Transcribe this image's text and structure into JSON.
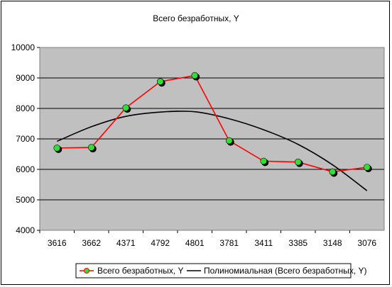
{
  "chart_data": {
    "type": "line",
    "title": "Всего безработных, Y",
    "categories": [
      "3616",
      "3662",
      "4371",
      "4792",
      "4801",
      "3781",
      "3411",
      "3385",
      "3148",
      "3076"
    ],
    "series": [
      {
        "name": "Всего безработных, Y",
        "values": [
          6700,
          6720,
          8020,
          8880,
          9080,
          6940,
          6270,
          6240,
          5920,
          6070
        ],
        "color": "#ff0000",
        "marker_color": "#33dd33"
      },
      {
        "name": "Полиномиальная (Всего безработных, Y)",
        "values": [
          6920,
          7400,
          7740,
          7880,
          7890,
          7660,
          7300,
          6820,
          6150,
          5300
        ],
        "color": "#000000"
      }
    ],
    "ylim": [
      4000,
      10000
    ],
    "yticks": [
      4000,
      5000,
      6000,
      7000,
      8000,
      9000,
      10000
    ],
    "grid": true,
    "plot_background": "#c0c0c0",
    "legend_position": "bottom"
  }
}
